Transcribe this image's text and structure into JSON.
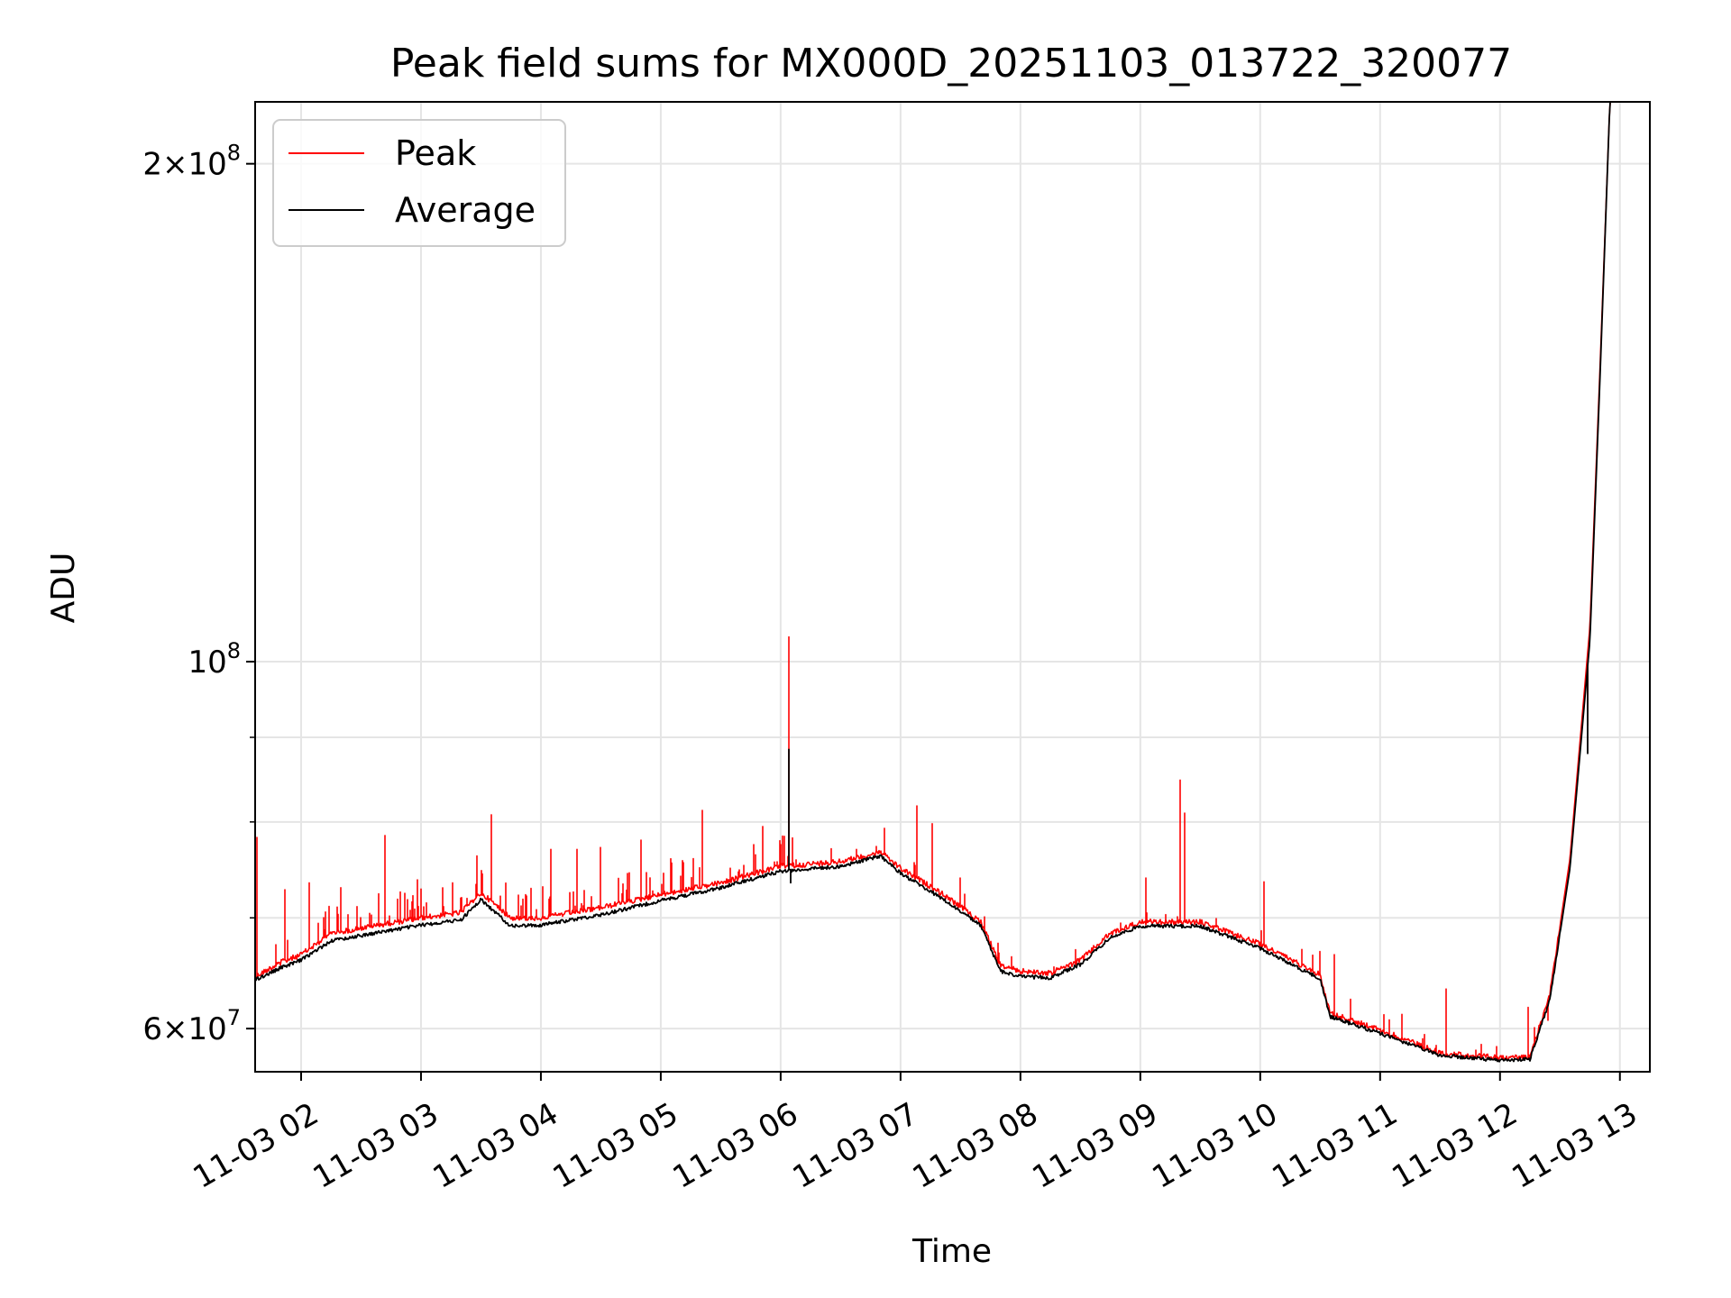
{
  "chart_data": {
    "type": "line",
    "title": "Peak field sums for MX000D_20251103_013722_320077",
    "xlabel": "Time",
    "ylabel": "ADU",
    "yscale": "log",
    "ylim": [
      56500000,
      218000000
    ],
    "xlim": [
      "2025-11-03 01:37",
      "2025-11-03 13:15"
    ],
    "grid": true,
    "legend_position": "upper-left",
    "x_ticks": [
      {
        "value": "2025-11-03 02:00",
        "label": "11-03 02"
      },
      {
        "value": "2025-11-03 03:00",
        "label": "11-03 03"
      },
      {
        "value": "2025-11-03 04:00",
        "label": "11-03 04"
      },
      {
        "value": "2025-11-03 05:00",
        "label": "11-03 05"
      },
      {
        "value": "2025-11-03 06:00",
        "label": "11-03 06"
      },
      {
        "value": "2025-11-03 07:00",
        "label": "11-03 07"
      },
      {
        "value": "2025-11-03 08:00",
        "label": "11-03 08"
      },
      {
        "value": "2025-11-03 09:00",
        "label": "11-03 09"
      },
      {
        "value": "2025-11-03 10:00",
        "label": "11-03 10"
      },
      {
        "value": "2025-11-03 11:00",
        "label": "11-03 11"
      },
      {
        "value": "2025-11-03 12:00",
        "label": "11-03 12"
      },
      {
        "value": "2025-11-03 13:00",
        "label": "11-03 13"
      }
    ],
    "y_major_ticks": [
      {
        "value": 60000000,
        "base": "6",
        "exp": "7"
      },
      {
        "value": 100000000,
        "base": "",
        "exp": "8"
      },
      {
        "value": 200000000,
        "base": "2",
        "exp": "8"
      }
    ],
    "y_minor_ticks": [
      70000000,
      80000000,
      90000000
    ],
    "series": [
      {
        "name": "Peak",
        "color": "#ff0000",
        "baseline": [
          [
            "2025-11-03 01:37",
            64500000
          ],
          [
            "2025-11-03 01:50",
            65800000
          ],
          [
            "2025-11-03 02:00",
            66500000
          ],
          [
            "2025-11-03 02:15",
            68500000
          ],
          [
            "2025-11-03 02:30",
            69000000
          ],
          [
            "2025-11-03 02:45",
            69500000
          ],
          [
            "2025-11-03 03:00",
            70000000
          ],
          [
            "2025-11-03 03:20",
            70500000
          ],
          [
            "2025-11-03 03:30",
            72500000
          ],
          [
            "2025-11-03 03:45",
            70000000
          ],
          [
            "2025-11-03 04:00",
            70000000
          ],
          [
            "2025-11-03 04:30",
            71000000
          ],
          [
            "2025-11-03 05:00",
            72300000
          ],
          [
            "2025-11-03 05:30",
            73500000
          ],
          [
            "2025-11-03 06:00",
            75200000
          ],
          [
            "2025-11-03 06:30",
            75700000
          ],
          [
            "2025-11-03 06:50",
            76700000
          ],
          [
            "2025-11-03 07:00",
            75000000
          ],
          [
            "2025-11-03 07:20",
            72500000
          ],
          [
            "2025-11-03 07:40",
            69700000
          ],
          [
            "2025-11-03 07:50",
            65500000
          ],
          [
            "2025-11-03 08:00",
            65000000
          ],
          [
            "2025-11-03 08:15",
            64800000
          ],
          [
            "2025-11-03 08:30",
            66000000
          ],
          [
            "2025-11-03 08:45",
            68500000
          ],
          [
            "2025-11-03 09:00",
            69600000
          ],
          [
            "2025-11-03 09:30",
            69600000
          ],
          [
            "2025-11-03 10:00",
            67500000
          ],
          [
            "2025-11-03 10:30",
            64700000
          ],
          [
            "2025-11-03 10:35",
            61300000
          ],
          [
            "2025-11-03 11:00",
            59900000
          ],
          [
            "2025-11-03 11:30",
            58000000
          ],
          [
            "2025-11-03 12:00",
            57600000
          ],
          [
            "2025-11-03 12:15",
            57700000
          ],
          [
            "2025-11-03 12:25",
            63000000
          ],
          [
            "2025-11-03 12:35",
            76000000
          ],
          [
            "2025-11-03 12:45",
            105000000
          ],
          [
            "2025-11-03 12:50",
            150000000
          ],
          [
            "2025-11-03 12:55",
            218000000
          ]
        ],
        "spikes": [
          [
            "2025-11-03 01:38",
            78300000
          ],
          [
            "2025-11-03 01:52",
            72800000
          ],
          [
            "2025-11-03 02:04",
            73500000
          ],
          [
            "2025-11-03 02:20",
            73000000
          ],
          [
            "2025-11-03 02:42",
            78500000
          ],
          [
            "2025-11-03 02:58",
            73800000
          ],
          [
            "2025-11-03 03:16",
            73500000
          ],
          [
            "2025-11-03 03:28",
            76300000
          ],
          [
            "2025-11-03 03:35",
            80800000
          ],
          [
            "2025-11-03 04:05",
            77000000
          ],
          [
            "2025-11-03 04:18",
            77000000
          ],
          [
            "2025-11-03 04:30",
            77200000
          ],
          [
            "2025-11-03 04:50",
            78000000
          ],
          [
            "2025-11-03 05:05",
            76000000
          ],
          [
            "2025-11-03 05:21",
            81300000
          ],
          [
            "2025-11-03 05:51",
            79500000
          ],
          [
            "2025-11-03 06:04",
            103500000
          ],
          [
            "2025-11-03 06:52",
            79300000
          ],
          [
            "2025-11-03 07:08",
            81800000
          ],
          [
            "2025-11-03 07:16",
            79800000
          ],
          [
            "2025-11-03 07:30",
            74000000
          ],
          [
            "2025-11-03 09:03",
            74000000
          ],
          [
            "2025-11-03 09:20",
            84800000
          ],
          [
            "2025-11-03 09:22",
            81000000
          ],
          [
            "2025-11-03 10:02",
            73600000
          ],
          [
            "2025-11-03 10:30",
            66800000
          ],
          [
            "2025-11-03 10:37",
            66500000
          ],
          [
            "2025-11-03 10:45",
            62500000
          ],
          [
            "2025-11-03 11:11",
            61200000
          ],
          [
            "2025-11-03 11:33",
            63400000
          ],
          [
            "2025-11-03 12:14",
            61800000
          ],
          [
            "2025-11-03 12:24",
            60700000
          ],
          [
            "2025-11-03 12:44",
            91500000
          ]
        ]
      },
      {
        "name": "Average",
        "color": "#000000",
        "baseline": [
          [
            "2025-11-03 01:37",
            64200000
          ],
          [
            "2025-11-03 01:50",
            65300000
          ],
          [
            "2025-11-03 02:00",
            66000000
          ],
          [
            "2025-11-03 02:15",
            67800000
          ],
          [
            "2025-11-03 02:30",
            68300000
          ],
          [
            "2025-11-03 02:45",
            68800000
          ],
          [
            "2025-11-03 03:00",
            69300000
          ],
          [
            "2025-11-03 03:20",
            69800000
          ],
          [
            "2025-11-03 03:30",
            71800000
          ],
          [
            "2025-11-03 03:45",
            69200000
          ],
          [
            "2025-11-03 04:00",
            69300000
          ],
          [
            "2025-11-03 04:30",
            70300000
          ],
          [
            "2025-11-03 05:00",
            71700000
          ],
          [
            "2025-11-03 05:30",
            73000000
          ],
          [
            "2025-11-03 06:00",
            74700000
          ],
          [
            "2025-11-03 06:30",
            75200000
          ],
          [
            "2025-11-03 06:50",
            76300000
          ],
          [
            "2025-11-03 07:00",
            74500000
          ],
          [
            "2025-11-03 07:20",
            72000000
          ],
          [
            "2025-11-03 07:40",
            69300000
          ],
          [
            "2025-11-03 07:50",
            65000000
          ],
          [
            "2025-11-03 08:00",
            64500000
          ],
          [
            "2025-11-03 08:15",
            64400000
          ],
          [
            "2025-11-03 08:30",
            65600000
          ],
          [
            "2025-11-03 08:45",
            68100000
          ],
          [
            "2025-11-03 09:00",
            69200000
          ],
          [
            "2025-11-03 09:30",
            69200000
          ],
          [
            "2025-11-03 10:00",
            67100000
          ],
          [
            "2025-11-03 10:30",
            64300000
          ],
          [
            "2025-11-03 10:35",
            61000000
          ],
          [
            "2025-11-03 11:00",
            59600000
          ],
          [
            "2025-11-03 11:30",
            57800000
          ],
          [
            "2025-11-03 12:00",
            57400000
          ],
          [
            "2025-11-03 12:15",
            57500000
          ],
          [
            "2025-11-03 12:25",
            62500000
          ],
          [
            "2025-11-03 12:35",
            75000000
          ],
          [
            "2025-11-03 12:45",
            103000000
          ],
          [
            "2025-11-03 12:50",
            148000000
          ],
          [
            "2025-11-03 12:55",
            218000000
          ]
        ],
        "spikes": [
          [
            "2025-11-03 06:04",
            88500000
          ],
          [
            "2025-11-03 06:05",
            73500000
          ],
          [
            "2025-11-03 12:44",
            88000000
          ]
        ]
      }
    ]
  }
}
